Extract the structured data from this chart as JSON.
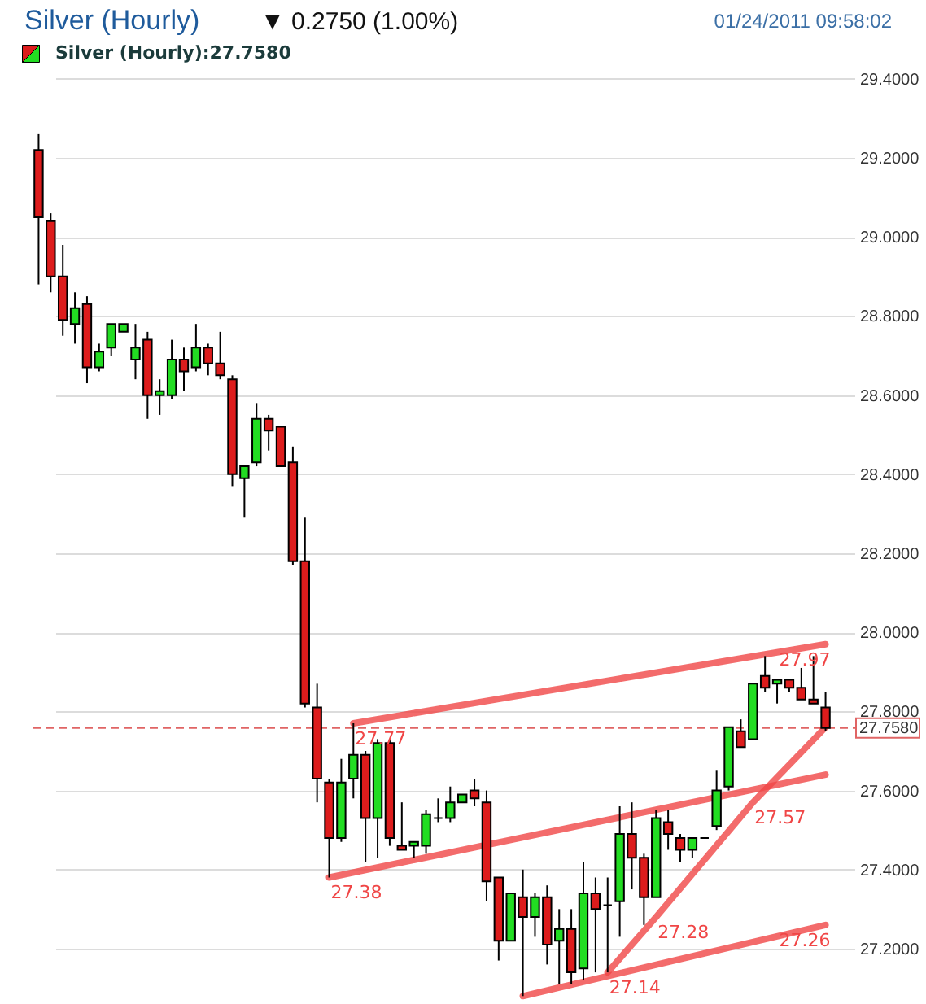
{
  "chart_data": {
    "type": "candlestick",
    "title": "Silver (Hourly)",
    "annotations": [
      "▼ 0.2750 (1.00%)",
      "01/24/2011 09:58:02"
    ],
    "categories": [
      null,
      null,
      null,
      null,
      null,
      null,
      null,
      null,
      null,
      null,
      null,
      null,
      null,
      null,
      null,
      null,
      null,
      null,
      null,
      null,
      null,
      null,
      null,
      null,
      null,
      null,
      null,
      null,
      null,
      null,
      null,
      null,
      null,
      null,
      null,
      null,
      null,
      null,
      null,
      null,
      null,
      null,
      null,
      null,
      null,
      null,
      null,
      null,
      null,
      null,
      null,
      null,
      null,
      null,
      null,
      null,
      null,
      null,
      null,
      null,
      null,
      null,
      null,
      null,
      null,
      null
    ],
    "series": [
      {
        "name": "Silver (Hourly):27.7580",
        "ohlc": [
          [
            29.22,
            29.26,
            28.88,
            29.05
          ],
          [
            29.04,
            29.06,
            28.86,
            28.9
          ],
          [
            28.9,
            28.98,
            28.75,
            28.79
          ],
          [
            28.78,
            28.86,
            28.73,
            28.82
          ],
          [
            28.83,
            28.85,
            28.63,
            28.67
          ],
          [
            28.67,
            28.73,
            28.66,
            28.71
          ],
          [
            28.72,
            28.78,
            28.7,
            28.78
          ],
          [
            28.76,
            28.78,
            28.76,
            28.78
          ],
          [
            28.69,
            28.78,
            28.64,
            28.72
          ],
          [
            28.74,
            28.76,
            28.54,
            28.6
          ],
          [
            28.6,
            28.64,
            28.55,
            28.61
          ],
          [
            28.6,
            28.74,
            28.59,
            28.69
          ],
          [
            28.69,
            28.72,
            28.61,
            28.66
          ],
          [
            28.67,
            28.78,
            28.66,
            28.72
          ],
          [
            28.72,
            28.73,
            28.65,
            28.68
          ],
          [
            28.68,
            28.76,
            28.64,
            28.65
          ],
          [
            28.64,
            28.65,
            28.37,
            28.4
          ],
          [
            28.39,
            28.42,
            28.29,
            28.42
          ],
          [
            28.43,
            28.58,
            28.42,
            28.54
          ],
          [
            28.54,
            28.55,
            28.46,
            28.51
          ],
          [
            28.52,
            28.52,
            28.42,
            28.42
          ],
          [
            28.43,
            28.47,
            28.17,
            28.18
          ],
          [
            28.18,
            28.29,
            27.81,
            27.82
          ],
          [
            27.81,
            27.87,
            27.57,
            27.63
          ],
          [
            27.62,
            27.63,
            27.38,
            27.48
          ],
          [
            27.48,
            27.68,
            27.47,
            27.62
          ],
          [
            27.63,
            27.77,
            27.58,
            27.69
          ],
          [
            27.69,
            27.7,
            27.42,
            27.53
          ],
          [
            27.53,
            27.73,
            27.43,
            27.72
          ],
          [
            27.72,
            27.73,
            27.46,
            27.48
          ],
          [
            27.46,
            27.57,
            27.45,
            27.45
          ],
          [
            27.46,
            27.47,
            27.43,
            27.47
          ],
          [
            27.46,
            27.55,
            27.44,
            27.54
          ],
          [
            27.53,
            27.58,
            27.52,
            27.53
          ],
          [
            27.53,
            27.61,
            27.52,
            27.57
          ],
          [
            27.57,
            27.59,
            27.57,
            27.59
          ],
          [
            27.6,
            27.63,
            27.56,
            27.58
          ],
          [
            27.57,
            27.6,
            27.32,
            27.37
          ],
          [
            27.38,
            27.38,
            27.17,
            27.22
          ],
          [
            27.22,
            27.34,
            27.22,
            27.34
          ],
          [
            27.33,
            27.4,
            27.08,
            27.28
          ],
          [
            27.28,
            27.34,
            27.23,
            27.33
          ],
          [
            27.33,
            27.36,
            27.16,
            27.21
          ],
          [
            27.22,
            27.3,
            27.11,
            27.25
          ],
          [
            27.25,
            27.3,
            27.11,
            27.14
          ],
          [
            27.15,
            27.42,
            27.12,
            27.34
          ],
          [
            27.34,
            27.38,
            27.14,
            27.3
          ],
          [
            27.31,
            27.38,
            27.14,
            27.31
          ],
          [
            27.32,
            27.56,
            27.23,
            27.49
          ],
          [
            27.49,
            27.57,
            27.35,
            27.43
          ],
          [
            27.43,
            27.44,
            27.26,
            27.33
          ],
          [
            27.33,
            27.55,
            27.33,
            27.53
          ],
          [
            27.52,
            27.55,
            27.45,
            27.49
          ],
          [
            27.48,
            27.49,
            27.42,
            27.45
          ],
          [
            27.45,
            27.48,
            27.43,
            27.48
          ],
          [
            27.48,
            27.48,
            27.48,
            27.48
          ],
          [
            27.51,
            27.65,
            27.5,
            27.6
          ],
          [
            27.61,
            27.76,
            27.6,
            27.76
          ],
          [
            27.75,
            27.78,
            27.71,
            27.71
          ],
          [
            27.73,
            27.87,
            27.73,
            27.87
          ],
          [
            27.89,
            27.94,
            27.85,
            27.86
          ],
          [
            27.87,
            27.88,
            27.82,
            27.88
          ],
          [
            27.88,
            27.88,
            27.85,
            27.86
          ],
          [
            27.86,
            27.91,
            27.83,
            27.83
          ],
          [
            27.83,
            27.94,
            27.82,
            27.82
          ],
          [
            27.81,
            27.85,
            27.75,
            27.758
          ]
        ],
        "colors": [
          "#dd1c1c",
          "#dd1c1c",
          "#dd1c1c",
          "#22dd22",
          "#dd1c1c",
          "#22dd22",
          "#22dd22",
          "#22dd22",
          "#22dd22",
          "#dd1c1c",
          "#22dd22",
          "#22dd22",
          "#dd1c1c",
          "#22dd22",
          "#dd1c1c",
          "#dd1c1c",
          "#dd1c1c",
          "#22dd22",
          "#22dd22",
          "#dd1c1c",
          "#dd1c1c",
          "#dd1c1c",
          "#dd1c1c",
          "#dd1c1c",
          "#dd1c1c",
          "#22dd22",
          "#22dd22",
          "#dd1c1c",
          "#22dd22",
          "#dd1c1c",
          "#dd1c1c",
          "#22dd22",
          "#22dd22",
          "#000000",
          "#22dd22",
          "#22dd22",
          "#dd1c1c",
          "#dd1c1c",
          "#dd1c1c",
          "#22dd22",
          "#dd1c1c",
          "#22dd22",
          "#dd1c1c",
          "#22dd22",
          "#dd1c1c",
          "#22dd22",
          "#dd1c1c",
          "#000000",
          "#22dd22",
          "#dd1c1c",
          "#dd1c1c",
          "#22dd22",
          "#dd1c1c",
          "#dd1c1c",
          "#22dd22",
          "#000000",
          "#22dd22",
          "#22dd22",
          "#dd1c1c",
          "#22dd22",
          "#dd1c1c",
          "#22dd22",
          "#dd1c1c",
          "#dd1c1c",
          "#dd1c1c",
          "#dd1c1c"
        ]
      },
      {
        "type": "line",
        "color": "#f04646",
        "values": [
          null,
          null,
          null,
          null,
          null,
          null,
          null,
          null,
          null,
          null,
          null,
          null,
          null,
          null,
          null,
          null,
          null,
          null,
          null,
          null,
          null,
          null,
          null,
          null,
          null,
          null,
          27.77,
          null,
          null,
          null,
          null,
          null,
          null,
          null,
          null,
          null,
          null,
          null,
          null,
          null,
          null,
          null,
          null,
          null,
          null,
          null,
          null,
          null,
          null,
          null,
          null,
          null,
          null,
          null,
          null,
          null,
          null,
          null,
          null,
          null,
          null,
          null,
          null,
          null,
          null,
          27.97
        ],
        "value_labels": [
          null,
          null,
          null,
          null,
          null,
          null,
          null,
          null,
          null,
          null,
          null,
          null,
          null,
          null,
          null,
          null,
          null,
          null,
          null,
          null,
          null,
          null,
          null,
          null,
          null,
          null,
          "27.77",
          null,
          null,
          null,
          null,
          null,
          null,
          null,
          null,
          null,
          null,
          null,
          null,
          null,
          null,
          null,
          null,
          null,
          null,
          null,
          null,
          null,
          null,
          null,
          null,
          null,
          null,
          null,
          null,
          null,
          null,
          null,
          null,
          null,
          null,
          null,
          null,
          null,
          null,
          "27.97"
        ]
      },
      {
        "type": "line",
        "color": "#f04646",
        "values": [
          null,
          null,
          null,
          null,
          null,
          null,
          null,
          null,
          null,
          null,
          null,
          null,
          null,
          null,
          null,
          null,
          null,
          null,
          null,
          null,
          null,
          null,
          null,
          null,
          27.38,
          null,
          null,
          null,
          null,
          null,
          null,
          null,
          null,
          null,
          null,
          null,
          null,
          null,
          null,
          null,
          null,
          null,
          null,
          null,
          null,
          null,
          null,
          null,
          null,
          null,
          null,
          null,
          null,
          null,
          null,
          null,
          null,
          null,
          null,
          null,
          null,
          null,
          null,
          null,
          null,
          27.64
        ],
        "value_labels": [
          null,
          null,
          null,
          null,
          null,
          null,
          null,
          null,
          null,
          null,
          null,
          null,
          null,
          null,
          null,
          null,
          null,
          null,
          null,
          null,
          null,
          null,
          null,
          null,
          "27.38",
          null,
          null,
          null,
          null,
          null,
          null,
          null,
          null,
          null,
          null,
          null,
          null,
          null,
          null,
          null,
          null,
          null,
          null,
          null,
          null,
          null,
          null,
          null,
          null,
          null,
          null,
          null,
          null,
          null,
          null,
          null,
          null,
          null,
          null,
          null,
          null,
          null,
          null,
          null,
          null,
          null
        ]
      },
      {
        "type": "line",
        "color": "#f04646",
        "values": [
          null,
          null,
          null,
          null,
          null,
          null,
          null,
          null,
          null,
          null,
          null,
          null,
          null,
          null,
          null,
          null,
          null,
          null,
          null,
          null,
          null,
          null,
          null,
          null,
          null,
          null,
          null,
          null,
          null,
          null,
          null,
          null,
          null,
          null,
          null,
          null,
          null,
          null,
          null,
          null,
          null,
          null,
          null,
          null,
          null,
          null,
          null,
          27.14,
          null,
          null,
          null,
          27.28,
          null,
          null,
          null,
          null,
          null,
          null,
          null,
          27.57,
          null,
          null,
          null,
          null,
          null,
          27.76
        ],
        "value_labels": [
          null,
          null,
          null,
          null,
          null,
          null,
          null,
          null,
          null,
          null,
          null,
          null,
          null,
          null,
          null,
          null,
          null,
          null,
          null,
          null,
          null,
          null,
          null,
          null,
          null,
          null,
          null,
          null,
          null,
          null,
          null,
          null,
          null,
          null,
          null,
          null,
          null,
          null,
          null,
          null,
          null,
          null,
          null,
          null,
          null,
          null,
          null,
          "27.14",
          null,
          null,
          null,
          "27.28",
          null,
          null,
          null,
          null,
          null,
          null,
          null,
          "27.57",
          null,
          null,
          null,
          null,
          null,
          null
        ]
      },
      {
        "type": "line",
        "color": "#f04646",
        "values": [
          null,
          null,
          null,
          null,
          null,
          null,
          null,
          null,
          null,
          null,
          null,
          null,
          null,
          null,
          null,
          null,
          null,
          null,
          null,
          null,
          null,
          null,
          null,
          null,
          null,
          null,
          null,
          null,
          null,
          null,
          null,
          null,
          null,
          null,
          null,
          null,
          null,
          null,
          null,
          null,
          27.08,
          null,
          null,
          null,
          null,
          null,
          null,
          null,
          null,
          null,
          null,
          null,
          null,
          null,
          null,
          null,
          null,
          null,
          null,
          null,
          null,
          null,
          null,
          null,
          null,
          27.26
        ],
        "value_labels": [
          null,
          null,
          null,
          null,
          null,
          null,
          null,
          null,
          null,
          null,
          null,
          null,
          null,
          null,
          null,
          null,
          null,
          null,
          null,
          null,
          null,
          null,
          null,
          null,
          null,
          null,
          null,
          null,
          null,
          null,
          null,
          null,
          null,
          null,
          null,
          null,
          null,
          null,
          null,
          null,
          null,
          null,
          null,
          null,
          null,
          null,
          null,
          null,
          null,
          null,
          null,
          null,
          null,
          null,
          null,
          null,
          null,
          null,
          null,
          null,
          null,
          null,
          null,
          null,
          null,
          "27.26"
        ]
      }
    ],
    "ref_lines": [
      {
        "axis": "y",
        "value": 27.758,
        "label": "27.7580",
        "color": "#e06464",
        "line_style": "dashed"
      }
    ],
    "ylim": [
      27.06,
      29.41
    ],
    "yticks": [
      {
        "value": 27.2,
        "label": "27.2000"
      },
      {
        "value": 27.4,
        "label": "27.4000"
      },
      {
        "value": 27.6,
        "label": "27.6000"
      },
      {
        "value": 27.8,
        "label": "27.8000"
      },
      {
        "value": 28.0,
        "label": "28.0000"
      },
      {
        "value": 28.2,
        "label": "28.2000"
      },
      {
        "value": 28.4,
        "label": "28.4000"
      },
      {
        "value": 28.6,
        "label": "28.6000"
      },
      {
        "value": 28.8,
        "label": "28.8000"
      },
      {
        "value": 29.0,
        "label": "29.0000"
      },
      {
        "value": 29.2,
        "label": "29.2000"
      },
      {
        "value": 29.4,
        "label": "29.4000"
      }
    ],
    "grid": "y",
    "legend": "top left",
    "tick_labels": "y"
  }
}
